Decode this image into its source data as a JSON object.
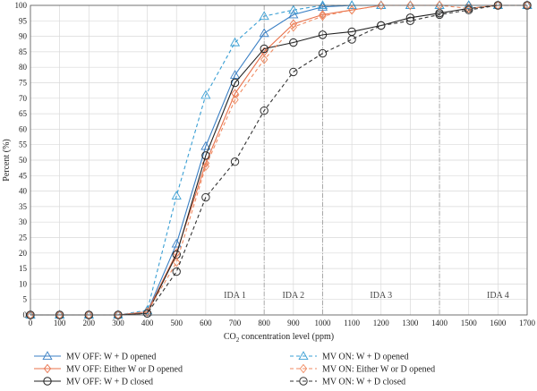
{
  "chart_data": {
    "type": "line",
    "xlabel_prefix": "CO",
    "xlabel_sub": "2",
    "xlabel_suffix": " concentration level (ppm)",
    "ylabel": "Percent (%)",
    "xlim": [
      0,
      1700
    ],
    "ylim": [
      0,
      100
    ],
    "xticks": [
      "0",
      "100",
      "200",
      "300",
      "400",
      "500",
      "600",
      "700",
      "800",
      "900",
      "1000",
      "1100",
      "1200",
      "1300",
      "1400",
      "1500",
      "1600",
      "1700"
    ],
    "yticks": [
      "0",
      "5",
      "10",
      "15",
      "20",
      "25",
      "30",
      "35",
      "40",
      "45",
      "50",
      "55",
      "60",
      "65",
      "70",
      "75",
      "80",
      "85",
      "90",
      "95",
      "100"
    ],
    "grid": true,
    "legend_position": "bottom",
    "annotations": [
      {
        "label": "IDA 1",
        "x": 700
      },
      {
        "label": "IDA 2",
        "x": 900
      },
      {
        "label": "IDA 3",
        "x": 1200
      },
      {
        "label": "IDA 4",
        "x": 1600
      }
    ],
    "boundaries": [
      800,
      1000,
      1400
    ],
    "x": [
      0,
      100,
      200,
      300,
      400,
      500,
      600,
      700,
      800,
      900,
      1000,
      1100,
      1200,
      1300,
      1400,
      1500,
      1600,
      1700
    ],
    "series": [
      {
        "name": "MV OFF: W + D opened",
        "color": "#3a7fc4",
        "marker": "triangle",
        "dash": false,
        "values": [
          0,
          0,
          0,
          0,
          1,
          23,
          54.5,
          77.5,
          91,
          97,
          99.5,
          100,
          100,
          100,
          100,
          100,
          100,
          100
        ]
      },
      {
        "name": "MV OFF: Either W or D opened",
        "color": "#e8704a",
        "marker": "diamond",
        "dash": false,
        "values": [
          0,
          0,
          0,
          0,
          1,
          20,
          49,
          71.5,
          85,
          94,
          97,
          98.5,
          100,
          100,
          100,
          100,
          100,
          100
        ]
      },
      {
        "name": "MV OFF: W + D closed",
        "color": "#222222",
        "marker": "circle",
        "dash": false,
        "values": [
          0,
          0,
          0,
          0,
          0.5,
          19.5,
          51.5,
          75,
          86,
          88,
          90.5,
          91.5,
          93.5,
          96,
          97.5,
          99,
          100,
          100
        ]
      },
      {
        "name": "MV ON: W + D opened",
        "color": "#3a9fd4",
        "marker": "triangle",
        "dash": true,
        "values": [
          0,
          0,
          0,
          0,
          1.5,
          38.5,
          71,
          88,
          96.5,
          98.5,
          100,
          100,
          100,
          100,
          100,
          100,
          100,
          100
        ]
      },
      {
        "name": "MV ON: Either W or D opened",
        "color": "#f08a60",
        "marker": "diamond",
        "dash": true,
        "values": [
          0,
          0,
          0,
          0,
          1,
          17,
          48,
          69.5,
          82.5,
          93,
          96.5,
          98.5,
          100,
          100,
          100,
          99,
          100,
          100
        ]
      },
      {
        "name": "MV ON: W + D closed",
        "color": "#333333",
        "marker": "circle",
        "dash": true,
        "values": [
          0,
          0,
          0,
          0,
          0.5,
          14,
          38,
          49.5,
          66,
          78.5,
          84.5,
          89,
          93.5,
          95,
          97,
          98.5,
          100,
          100
        ]
      }
    ]
  }
}
